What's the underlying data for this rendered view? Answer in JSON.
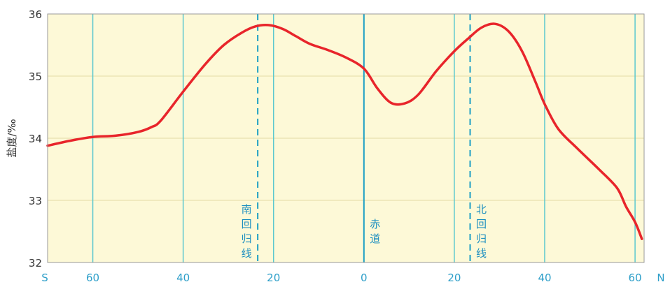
{
  "chart_data": {
    "type": "line",
    "title": "",
    "ylabel": "盐度/‰",
    "xlabel": "",
    "ylim": [
      32,
      36
    ],
    "xlim": [
      -70,
      62
    ],
    "x_start_label": "S",
    "x_end_label": "N",
    "yticks": [
      32,
      33,
      34,
      35,
      36
    ],
    "xticks": [
      {
        "x": -60,
        "label": "60"
      },
      {
        "x": -40,
        "label": "40"
      },
      {
        "x": -20,
        "label": "20"
      },
      {
        "x": 0,
        "label": "0"
      },
      {
        "x": 20,
        "label": "20"
      },
      {
        "x": 40,
        "label": "40"
      },
      {
        "x": 60,
        "label": "60"
      }
    ],
    "reference_lines": [
      {
        "x": -23.5,
        "style": "dashed",
        "label": "南回归线",
        "label_chars": [
          "南",
          "回",
          "归",
          "线"
        ]
      },
      {
        "x": 0,
        "style": "solid",
        "label": "赤道",
        "label_chars": [
          "赤",
          "道"
        ]
      },
      {
        "x": 23.5,
        "style": "dashed",
        "label": "北回归线",
        "label_chars": [
          "北",
          "回",
          "归",
          "线"
        ]
      }
    ],
    "series": [
      {
        "color": "#e8252b",
        "x": [
          -70,
          -65,
          -60,
          -55,
          -50,
          -47,
          -45,
          -40,
          -35,
          -31,
          -27,
          -24,
          -21,
          -18,
          -15,
          -12,
          -8,
          -4,
          0,
          3,
          6,
          9,
          12,
          16,
          20,
          23,
          26,
          29,
          32,
          35,
          38,
          40,
          43,
          47,
          52,
          56,
          58,
          60,
          61.5
        ],
        "y": [
          33.88,
          33.96,
          34.02,
          34.04,
          34.1,
          34.18,
          34.28,
          34.75,
          35.2,
          35.5,
          35.7,
          35.8,
          35.82,
          35.76,
          35.64,
          35.52,
          35.42,
          35.3,
          35.12,
          34.8,
          34.57,
          34.56,
          34.7,
          35.08,
          35.4,
          35.6,
          35.78,
          35.84,
          35.72,
          35.4,
          34.9,
          34.55,
          34.15,
          33.85,
          33.5,
          33.2,
          32.9,
          32.65,
          32.38
        ]
      }
    ],
    "grid": true,
    "background": "#fdf9d7",
    "gridline_color": "#5bc8cf",
    "axis_label_color": "#2e9fc9"
  }
}
